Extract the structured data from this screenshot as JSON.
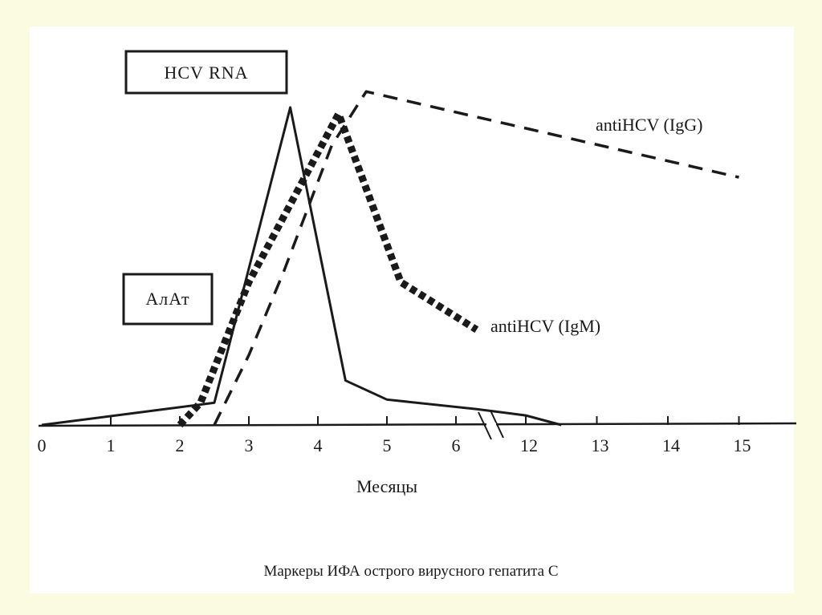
{
  "chart_data": {
    "type": "line",
    "title": "Маркеры ИФА острого вирусного гепатита С",
    "xlabel": "Месяцы",
    "ylabel": "",
    "x_ticks": [
      "0",
      "1",
      "2",
      "3",
      "4",
      "5",
      "6",
      "12",
      "13",
      "14",
      "15"
    ],
    "x_axis_break": "between 6 and 12",
    "grid": false,
    "series": [
      {
        "name": "HCV RNA",
        "style": "solid",
        "x": [
          0,
          2.5,
          3.6,
          4.4,
          5,
          6.3,
          12,
          12.5
        ],
        "y": [
          0.0,
          0.07,
          1.0,
          0.14,
          0.08,
          0.05,
          0.03,
          0.0
        ]
      },
      {
        "name": "АлАт",
        "style": "dotted-thick",
        "x": [
          2.0,
          2.3,
          3.0,
          4.3,
          5.2,
          6.3
        ],
        "y": [
          0.0,
          0.07,
          0.45,
          0.98,
          0.45,
          0.3
        ]
      },
      {
        "name": "antiHCV (IgM)",
        "style": "dotted-thick",
        "x": [
          2.0,
          2.3,
          3.0,
          4.3,
          5.2,
          6.3
        ],
        "y": [
          0.0,
          0.07,
          0.45,
          0.98,
          0.45,
          0.3
        ]
      },
      {
        "name": "antiHCV (IgG)",
        "style": "dashed",
        "x": [
          2.5,
          3.0,
          3.5,
          4.2,
          4.7,
          15
        ],
        "y": [
          0.0,
          0.22,
          0.48,
          0.88,
          1.05,
          0.78
        ]
      }
    ]
  },
  "labels": {
    "hcv_rna_box": "HCV RNA",
    "alat_box": "АлАт",
    "igg_label": "antiHCV (IgG)",
    "igm_label": "antiHCV (IgM)"
  },
  "colors": {
    "ink": "#1a1a1a",
    "frame": "#fbfbe2"
  }
}
